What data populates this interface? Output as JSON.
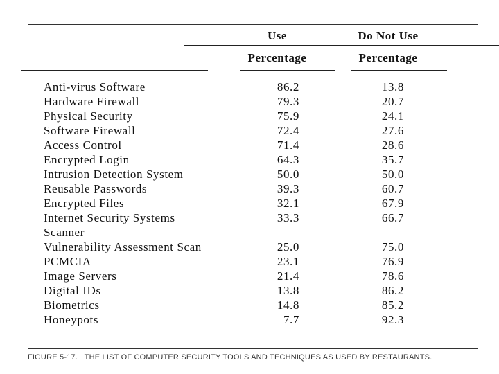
{
  "columns": [
    {
      "line1": "Use",
      "line2": "Percentage"
    },
    {
      "line1": "Do Not Use",
      "line2": "Percentage"
    }
  ],
  "rows": [
    {
      "label": "Anti-virus Software",
      "use": "86.2",
      "not_use": "13.8"
    },
    {
      "label": "Hardware Firewall",
      "use": "79.3",
      "not_use": "20.7"
    },
    {
      "label": "Physical Security",
      "use": "75.9",
      "not_use": "24.1"
    },
    {
      "label": "Software Firewall",
      "use": "72.4",
      "not_use": "27.6"
    },
    {
      "label": "Access Control",
      "use": "71.4",
      "not_use": "28.6"
    },
    {
      "label": "Encrypted Login",
      "use": "64.3",
      "not_use": "35.7"
    },
    {
      "label": "Intrusion Detection System",
      "use": "50.0",
      "not_use": "50.0"
    },
    {
      "label": "Reusable Passwords",
      "use": "39.3",
      "not_use": "60.7"
    },
    {
      "label": "Encrypted Files",
      "use": "32.1",
      "not_use": "67.9"
    },
    {
      "label": "Internet Security Systems Scanner",
      "use": "33.3",
      "not_use": "66.7"
    },
    {
      "label": "Vulnerability Assessment Scan",
      "use": "25.0",
      "not_use": "75.0"
    },
    {
      "label": "PCMCIA",
      "use": "23.1",
      "not_use": "76.9"
    },
    {
      "label": "Image Servers",
      "use": "21.4",
      "not_use": "78.6"
    },
    {
      "label": "Digital IDs",
      "use": "13.8",
      "not_use": "86.2"
    },
    {
      "label": "Biometrics",
      "use": "14.8",
      "not_use": "85.2"
    },
    {
      "label": "Honeypots",
      "use": "7.7",
      "not_use": "92.3"
    }
  ],
  "caption": "FIGURE 5-17.   THE LIST OF COMPUTER SECURITY TOOLS AND TECHNIQUES AS USED BY RESTAURANTS."
}
